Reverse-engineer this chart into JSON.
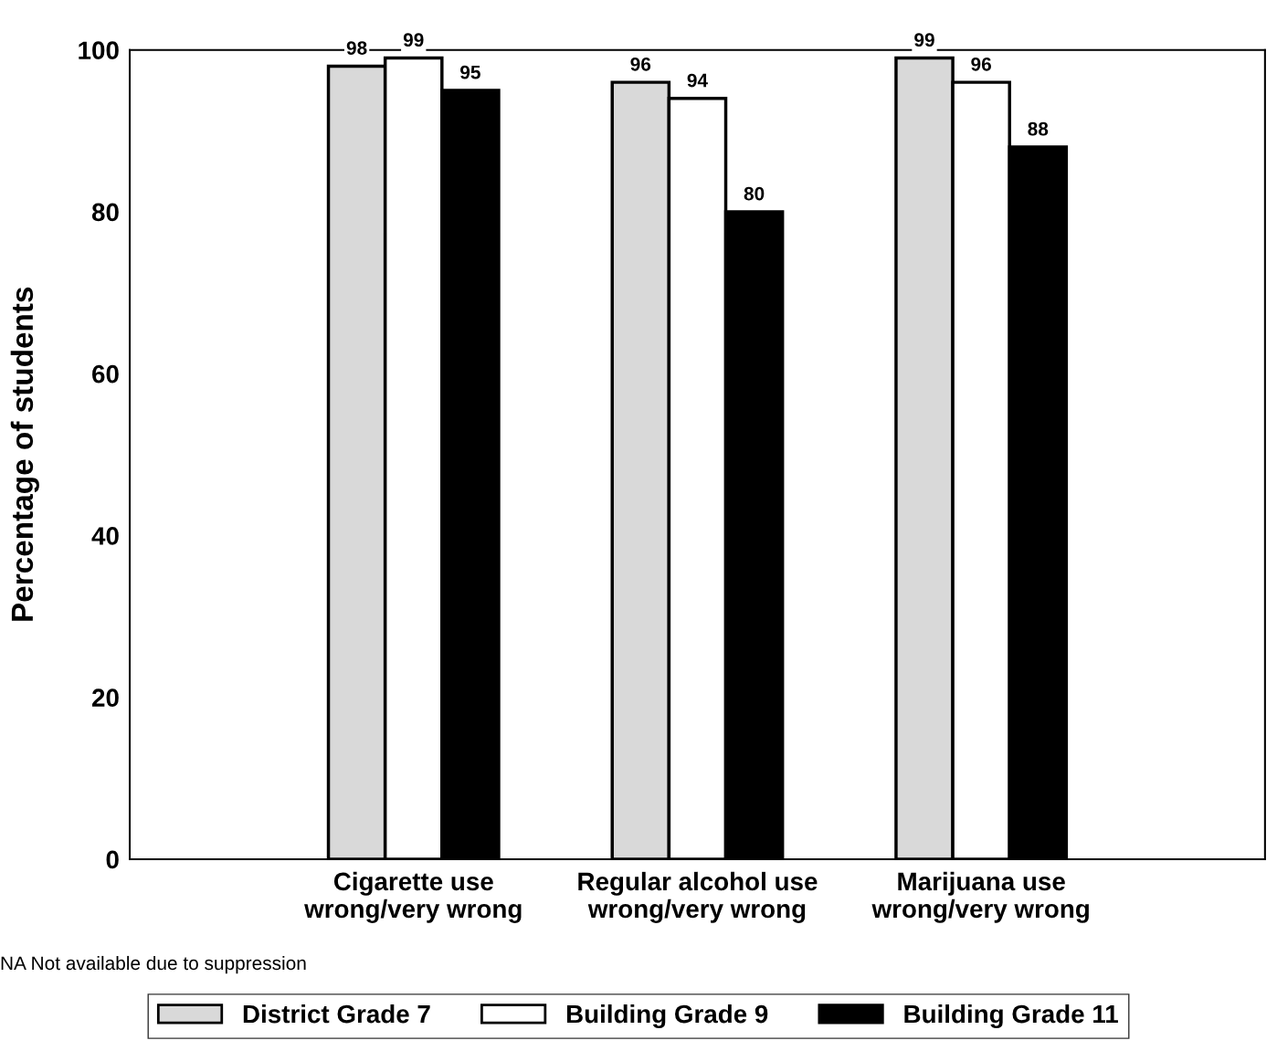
{
  "chart_data": {
    "type": "bar",
    "ylabel": "Percentage of students",
    "categories": [
      "Cigarette use\nwrong/very wrong",
      "Regular alcohol use\nwrong/very wrong",
      "Marijuana use\nwrong/very wrong"
    ],
    "series": [
      {
        "name": "District Grade 7",
        "color": "#d9d9d9",
        "values": [
          98,
          96,
          99
        ]
      },
      {
        "name": "Building Grade 9",
        "color": "#ffffff",
        "values": [
          99,
          94,
          96
        ]
      },
      {
        "name": "Building Grade 11",
        "color": "#000000",
        "values": [
          95,
          80,
          88
        ]
      }
    ],
    "ylim": [
      0,
      100
    ],
    "yticks": [
      0,
      20,
      40,
      60,
      80,
      100
    ],
    "grid": false,
    "data_labels": true,
    "legend": "bottom",
    "annotations": [
      "NA Not available due to suppression"
    ]
  }
}
